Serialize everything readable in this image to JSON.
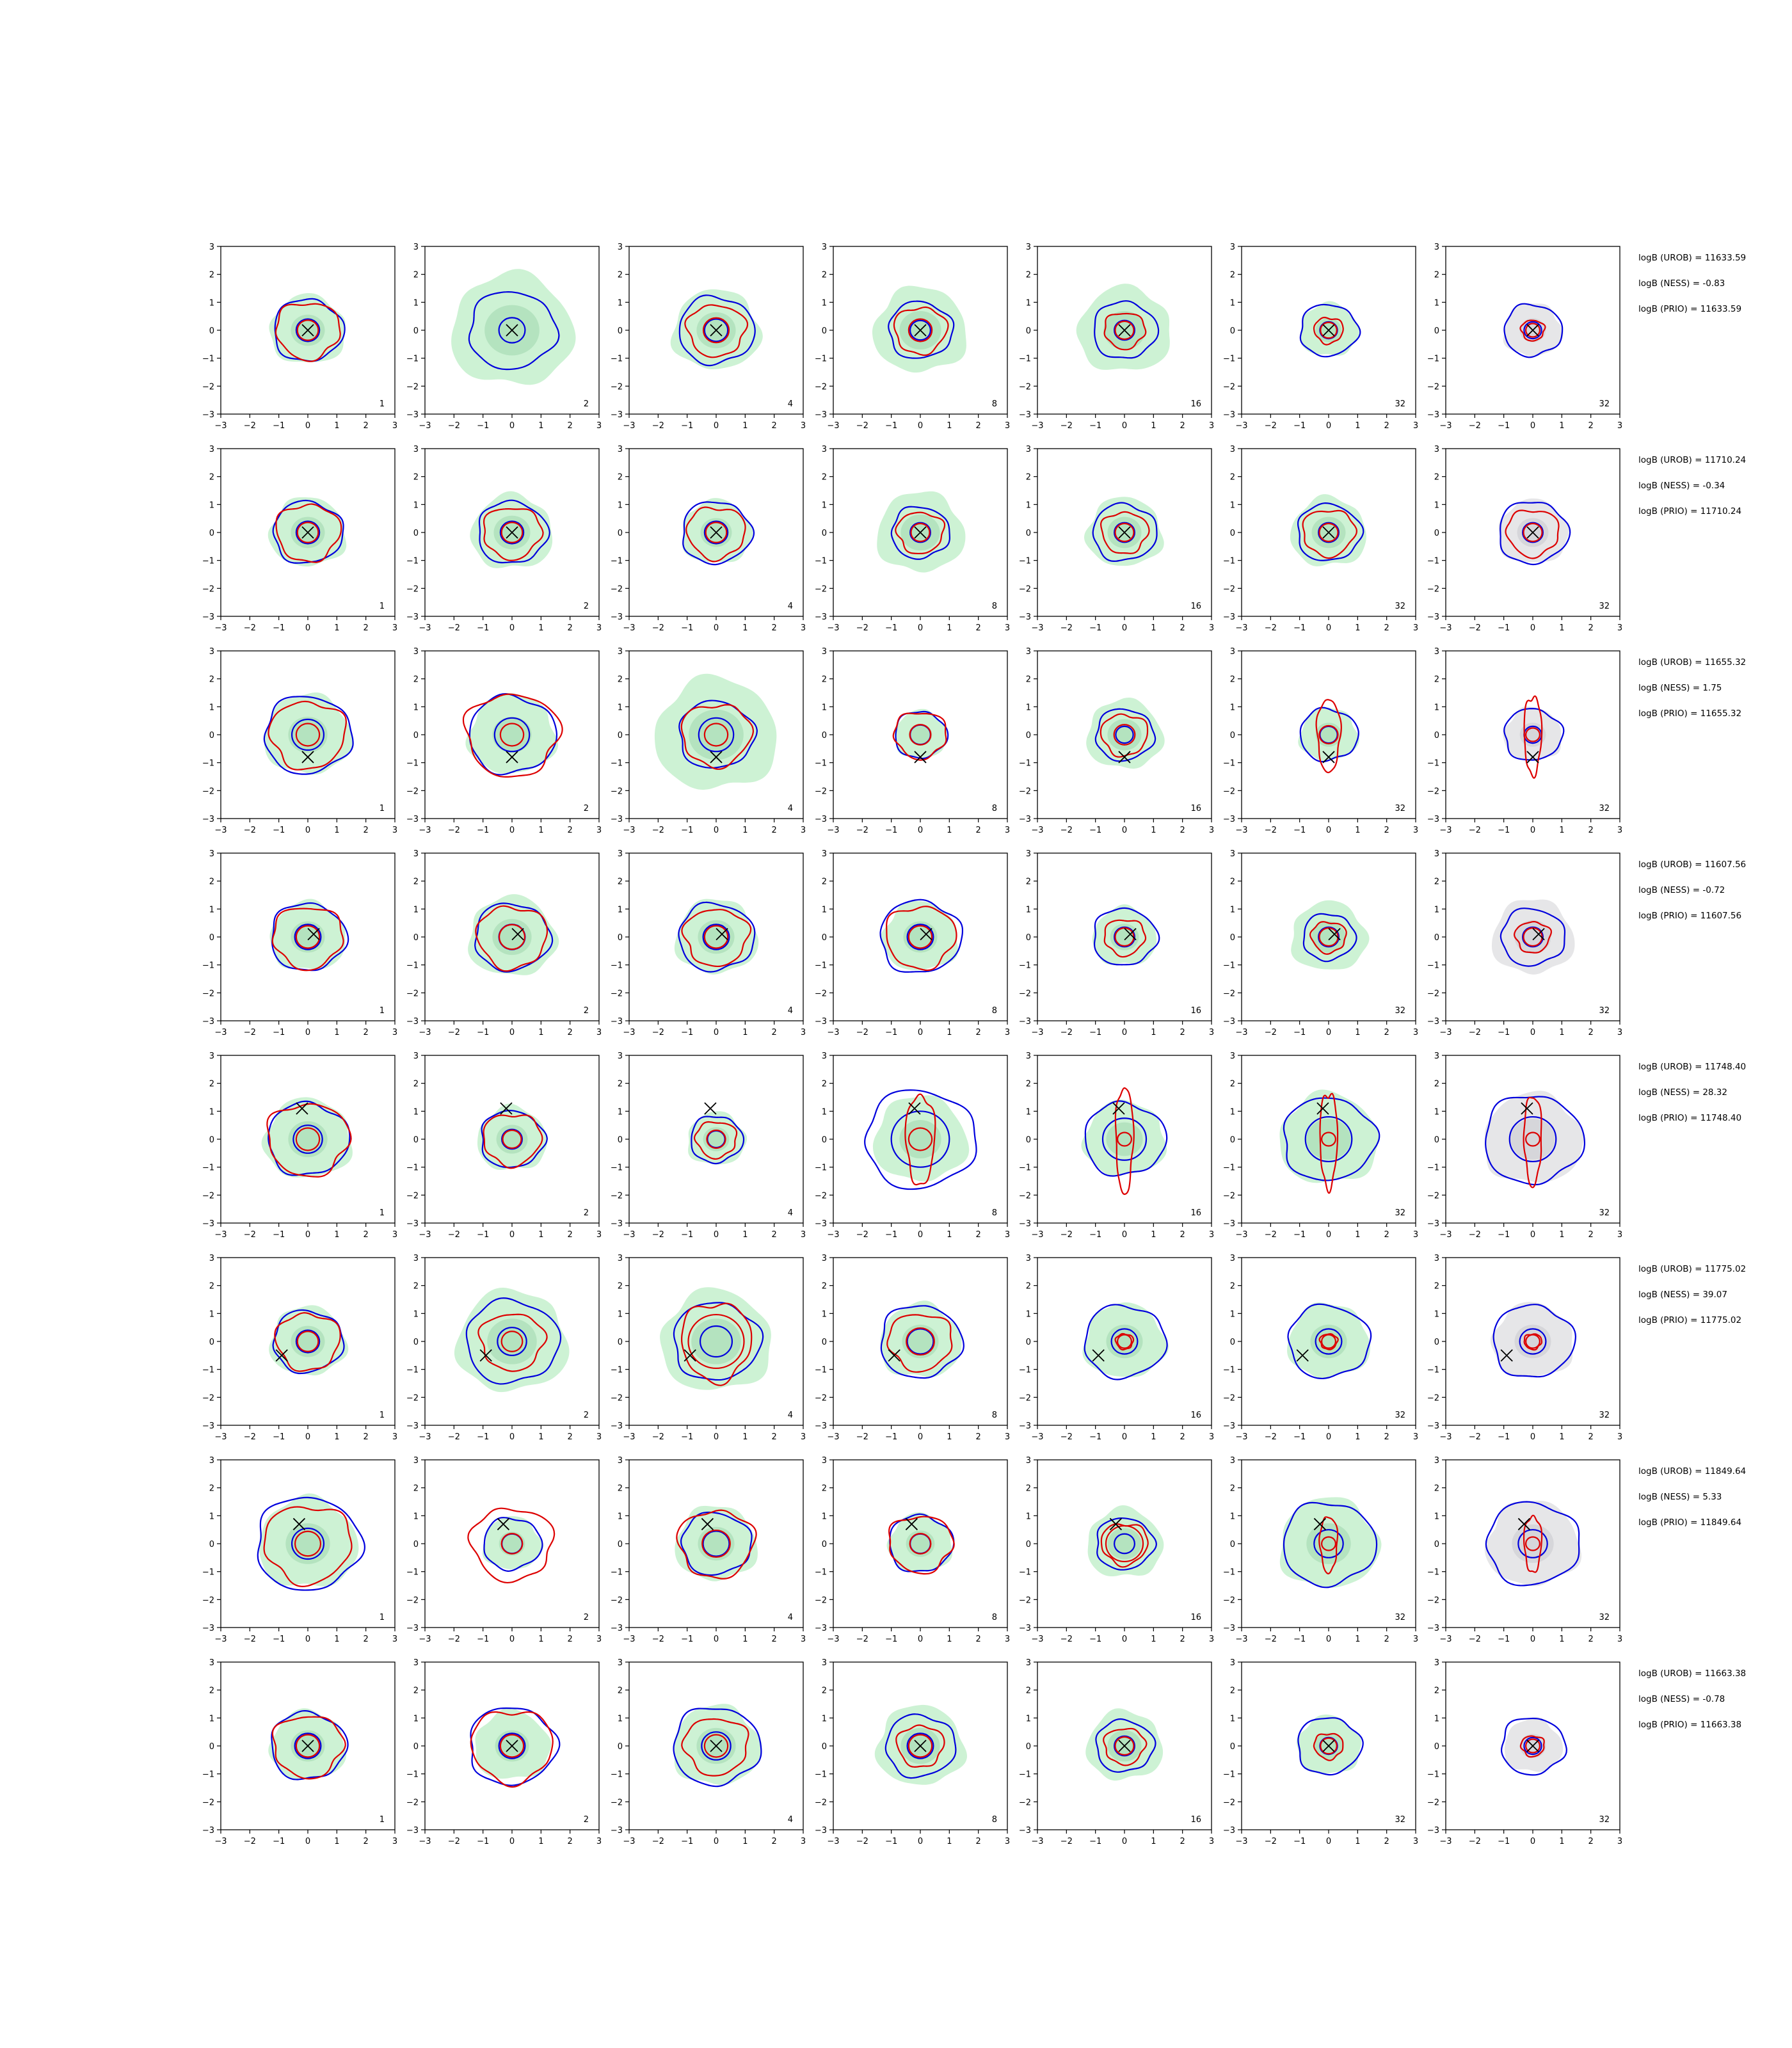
{
  "chart_data": {
    "type": "contour-grid",
    "rows": 8,
    "cols": 7,
    "xlim": [
      -3,
      3
    ],
    "ylim": [
      -3,
      3
    ],
    "xticks": [
      "−3",
      "−2",
      "−1",
      "0",
      "1",
      "2",
      "3"
    ],
    "yticks": [
      "3",
      "2",
      "1",
      "0",
      "−1",
      "−2",
      "−3"
    ],
    "panel_labels": [
      "1",
      "2",
      "4",
      "8",
      "16",
      "32",
      "32"
    ],
    "colors": {
      "fill_green": "#cdf2d4",
      "fill_green_dark": "#b4e3bf",
      "fill_gray": "#e6e6e8",
      "fill_gray_dark": "#d6d6da",
      "contour_blue": "#0000dd",
      "contour_red": "#dd0000",
      "marker": "#000000"
    },
    "row_stats": [
      {
        "urob": "logB (UROB) = 11633.59",
        "ness": "logB (NESS) = -0.83",
        "prio": "logB (PRIO) = 11633.59"
      },
      {
        "urob": "logB (UROB) = 11710.24",
        "ness": "logB (NESS) = -0.34",
        "prio": "logB (PRIO) = 11710.24"
      },
      {
        "urob": "logB (UROB) = 11655.32",
        "ness": "logB (NESS) = 1.75",
        "prio": "logB (PRIO) = 11655.32"
      },
      {
        "urob": "logB (UROB) = 11607.56",
        "ness": "logB (NESS) = -0.72",
        "prio": "logB (PRIO) = 11607.56"
      },
      {
        "urob": "logB (UROB) = 11748.40",
        "ness": "logB (NESS) = 28.32",
        "prio": "logB (PRIO) = 11748.40"
      },
      {
        "urob": "logB (UROB) = 11775.02",
        "ness": "logB (NESS) = 39.07",
        "prio": "logB (PRIO) = 11775.02"
      },
      {
        "urob": "logB (UROB) = 11849.64",
        "ness": "logB (NESS) = 5.33",
        "prio": "logB (PRIO) = 11849.64"
      },
      {
        "urob": "logB (UROB) = 11663.38",
        "ness": "logB (NESS) = -0.78",
        "prio": "logB (PRIO) = 11663.38"
      }
    ],
    "row_markers": [
      [
        0,
        0
      ],
      [
        0,
        0
      ],
      [
        0,
        -0.8
      ],
      [
        0.2,
        0.1
      ],
      [
        -0.2,
        1.1
      ],
      [
        -0.9,
        -0.5
      ],
      [
        -0.3,
        0.7
      ],
      [
        0,
        0
      ]
    ],
    "panels": [
      [
        {
          "fill": 1.3,
          "blue": [
            1.2,
            0.4
          ],
          "red": [
            1.1,
            0.45
          ]
        },
        {
          "fill": 2.1,
          "blue": [
            1.5,
            0.45
          ],
          "red": null
        },
        {
          "fill": 1.5,
          "blue": [
            1.3,
            0.4
          ],
          "red": [
            1.0,
            0.55
          ]
        },
        {
          "fill": 1.6,
          "blue": [
            1.1,
            0.35
          ],
          "red": [
            0.9,
            0.5
          ]
        },
        {
          "fill": 1.6,
          "blue": [
            1.1,
            0.35
          ],
          "red": [
            0.7,
            0.4
          ]
        },
        {
          "fill": 1.0,
          "blue": [
            1.0,
            0.3
          ],
          "red": [
            0.5,
            0.35
          ]
        },
        {
          "fill": 1.0,
          "blue": [
            1.0,
            0.3
          ],
          "red": [
            0.4,
            0.3
          ],
          "gray": true
        }
      ],
      [
        {
          "fill": 1.3,
          "blue": [
            1.2,
            0.4
          ],
          "red": [
            1.1,
            0.45
          ]
        },
        {
          "fill": 1.4,
          "blue": [
            1.2,
            0.4
          ],
          "red": [
            1.0,
            0.45
          ]
        },
        {
          "fill": 1.2,
          "blue": [
            1.2,
            0.4
          ],
          "red": [
            1.0,
            0.45
          ]
        },
        {
          "fill": 1.5,
          "blue": [
            1.0,
            0.35
          ],
          "red": [
            0.8,
            0.4
          ]
        },
        {
          "fill": 1.3,
          "blue": [
            1.1,
            0.35
          ],
          "red": [
            0.8,
            0.4
          ]
        },
        {
          "fill": 1.3,
          "blue": [
            1.1,
            0.35
          ],
          "red": [
            0.9,
            0.4
          ]
        },
        {
          "fill": 1.2,
          "blue": [
            1.2,
            0.35
          ],
          "red": [
            0.9,
            0.4
          ],
          "gray": true
        }
      ],
      [
        {
          "fill": 1.5,
          "blue": [
            1.5,
            0.55
          ],
          "red": [
            1.3,
            0.5
          ]
        },
        {
          "fill": 1.5,
          "blue": [
            1.5,
            0.6
          ],
          "red": [
            1.6,
            0.5
          ]
        },
        {
          "fill": 2.1,
          "blue": [
            1.3,
            0.6
          ],
          "red": [
            1.2,
            0.5
          ]
        },
        {
          "fill": 0.9,
          "blue": [
            0.9,
            0.35
          ],
          "red": [
            0.9,
            0.45
          ]
        },
        {
          "fill": 1.3,
          "blue": [
            1.0,
            0.3
          ],
          "red": [
            0.8,
            0.45
          ]
        },
        {
          "fill": 1.0,
          "blue": [
            1.0,
            0.3
          ],
          "red": [
            0.4,
            1.3
          ]
        },
        {
          "fill": 1.0,
          "blue": [
            1.0,
            0.3
          ],
          "red": [
            0.3,
            1.4
          ],
          "gray": true
        }
      ],
      [
        {
          "fill": 1.3,
          "blue": [
            1.3,
            0.45
          ],
          "red": [
            1.2,
            0.5
          ]
        },
        {
          "fill": 1.5,
          "blue": [
            1.3,
            0.45
          ],
          "red": [
            1.2,
            0.55
          ]
        },
        {
          "fill": 1.4,
          "blue": [
            1.3,
            0.45
          ],
          "red": [
            1.1,
            0.5
          ]
        },
        {
          "fill": 1.3,
          "blue": [
            1.4,
            0.45
          ],
          "red": [
            1.2,
            0.5
          ]
        },
        {
          "fill": 1.1,
          "blue": [
            1.1,
            0.35
          ],
          "red": [
            0.7,
            0.4
          ]
        },
        {
          "fill": 1.3,
          "blue": [
            0.9,
            0.35
          ],
          "red": [
            0.6,
            0.4
          ]
        },
        {
          "fill": 1.4,
          "blue": [
            1.1,
            0.35
          ],
          "red": [
            0.6,
            0.4
          ],
          "gray": true
        }
      ],
      [
        {
          "fill": 1.5,
          "blue": [
            1.4,
            0.5
          ],
          "red": [
            1.4,
            0.5
          ]
        },
        {
          "fill": 1.2,
          "blue": [
            1.1,
            0.35
          ],
          "red": [
            1.0,
            0.4
          ]
        },
        {
          "fill": 1.0,
          "blue": [
            0.9,
            0.3
          ],
          "red": [
            0.7,
            0.4
          ]
        },
        {
          "fill": 1.6,
          "blue": [
            1.9,
            1.0
          ],
          "red": [
            0.5,
            1.6
          ]
        },
        {
          "fill": 1.4,
          "blue": [
            1.4,
            0.75
          ],
          "red": [
            0.3,
            1.9
          ]
        },
        {
          "fill": 1.7,
          "blue": [
            1.6,
            0.8
          ],
          "red": [
            0.3,
            1.7
          ]
        },
        {
          "fill": 1.7,
          "blue": [
            1.7,
            0.8
          ],
          "red": [
            0.3,
            1.6
          ],
          "gray": true
        }
      ],
      [
        {
          "fill": 1.3,
          "blue": [
            1.2,
            0.4
          ],
          "red": [
            1.1,
            0.45
          ]
        },
        {
          "fill": 1.9,
          "blue": [
            1.6,
            0.5
          ],
          "red": [
            1.1,
            0.45
          ]
        },
        {
          "fill": 1.9,
          "blue": [
            1.5,
            0.55
          ],
          "red": [
            1.2,
            1.4
          ]
        },
        {
          "fill": 1.4,
          "blue": [
            1.4,
            0.45
          ],
          "red": [
            1.1,
            0.6
          ]
        },
        {
          "fill": 1.4,
          "blue": [
            1.4,
            0.45
          ],
          "red": [
            0.3,
            0.8
          ]
        },
        {
          "fill": 1.4,
          "blue": [
            1.4,
            0.45
          ],
          "red": [
            0.3,
            0.8
          ]
        },
        {
          "fill": 1.4,
          "blue": [
            1.4,
            0.45
          ],
          "red": [
            0.3,
            0.8
          ],
          "gray": true
        }
      ],
      [
        {
          "fill": 1.7,
          "blue": [
            1.8,
            0.55
          ],
          "red": [
            1.5,
            0.55
          ]
        },
        {
          "fill": 1.0,
          "blue": [
            1.0,
            0.35
          ],
          "red": [
            1.4,
            0.45
          ]
        },
        {
          "fill": 1.4,
          "blue": [
            1.2,
            0.45
          ],
          "red": [
            1.3,
            0.6
          ]
        },
        {
          "fill": 1.1,
          "blue": [
            1.1,
            0.35
          ],
          "red": [
            1.1,
            0.45
          ]
        },
        {
          "fill": 1.3,
          "blue": [
            1.0,
            0.35
          ],
          "red": [
            0.8,
            0.9
          ]
        },
        {
          "fill": 1.7,
          "blue": [
            1.6,
            0.5
          ],
          "red": [
            0.3,
            1.0
          ]
        },
        {
          "fill": 1.6,
          "blue": [
            1.6,
            0.5
          ],
          "red": [
            0.3,
            1.0
          ],
          "gray": true
        }
      ],
      [
        {
          "fill": 1.3,
          "blue": [
            1.3,
            0.45
          ],
          "red": [
            1.2,
            0.5
          ]
        },
        {
          "fill": 1.3,
          "blue": [
            1.5,
            0.45
          ],
          "red": [
            1.4,
            0.5
          ]
        },
        {
          "fill": 1.5,
          "blue": [
            1.5,
            0.5
          ],
          "red": [
            1.1,
            0.5
          ]
        },
        {
          "fill": 1.5,
          "blue": [
            1.2,
            0.45
          ],
          "red": [
            0.8,
            0.5
          ]
        },
        {
          "fill": 1.3,
          "blue": [
            1.0,
            0.35
          ],
          "red": [
            0.7,
            0.4
          ]
        },
        {
          "fill": 1.1,
          "blue": [
            1.1,
            0.3
          ],
          "red": [
            0.5,
            0.35
          ]
        },
        {
          "fill": 1.0,
          "blue": [
            1.1,
            0.3
          ],
          "red": [
            0.4,
            0.3
          ],
          "gray": true
        }
      ]
    ]
  }
}
